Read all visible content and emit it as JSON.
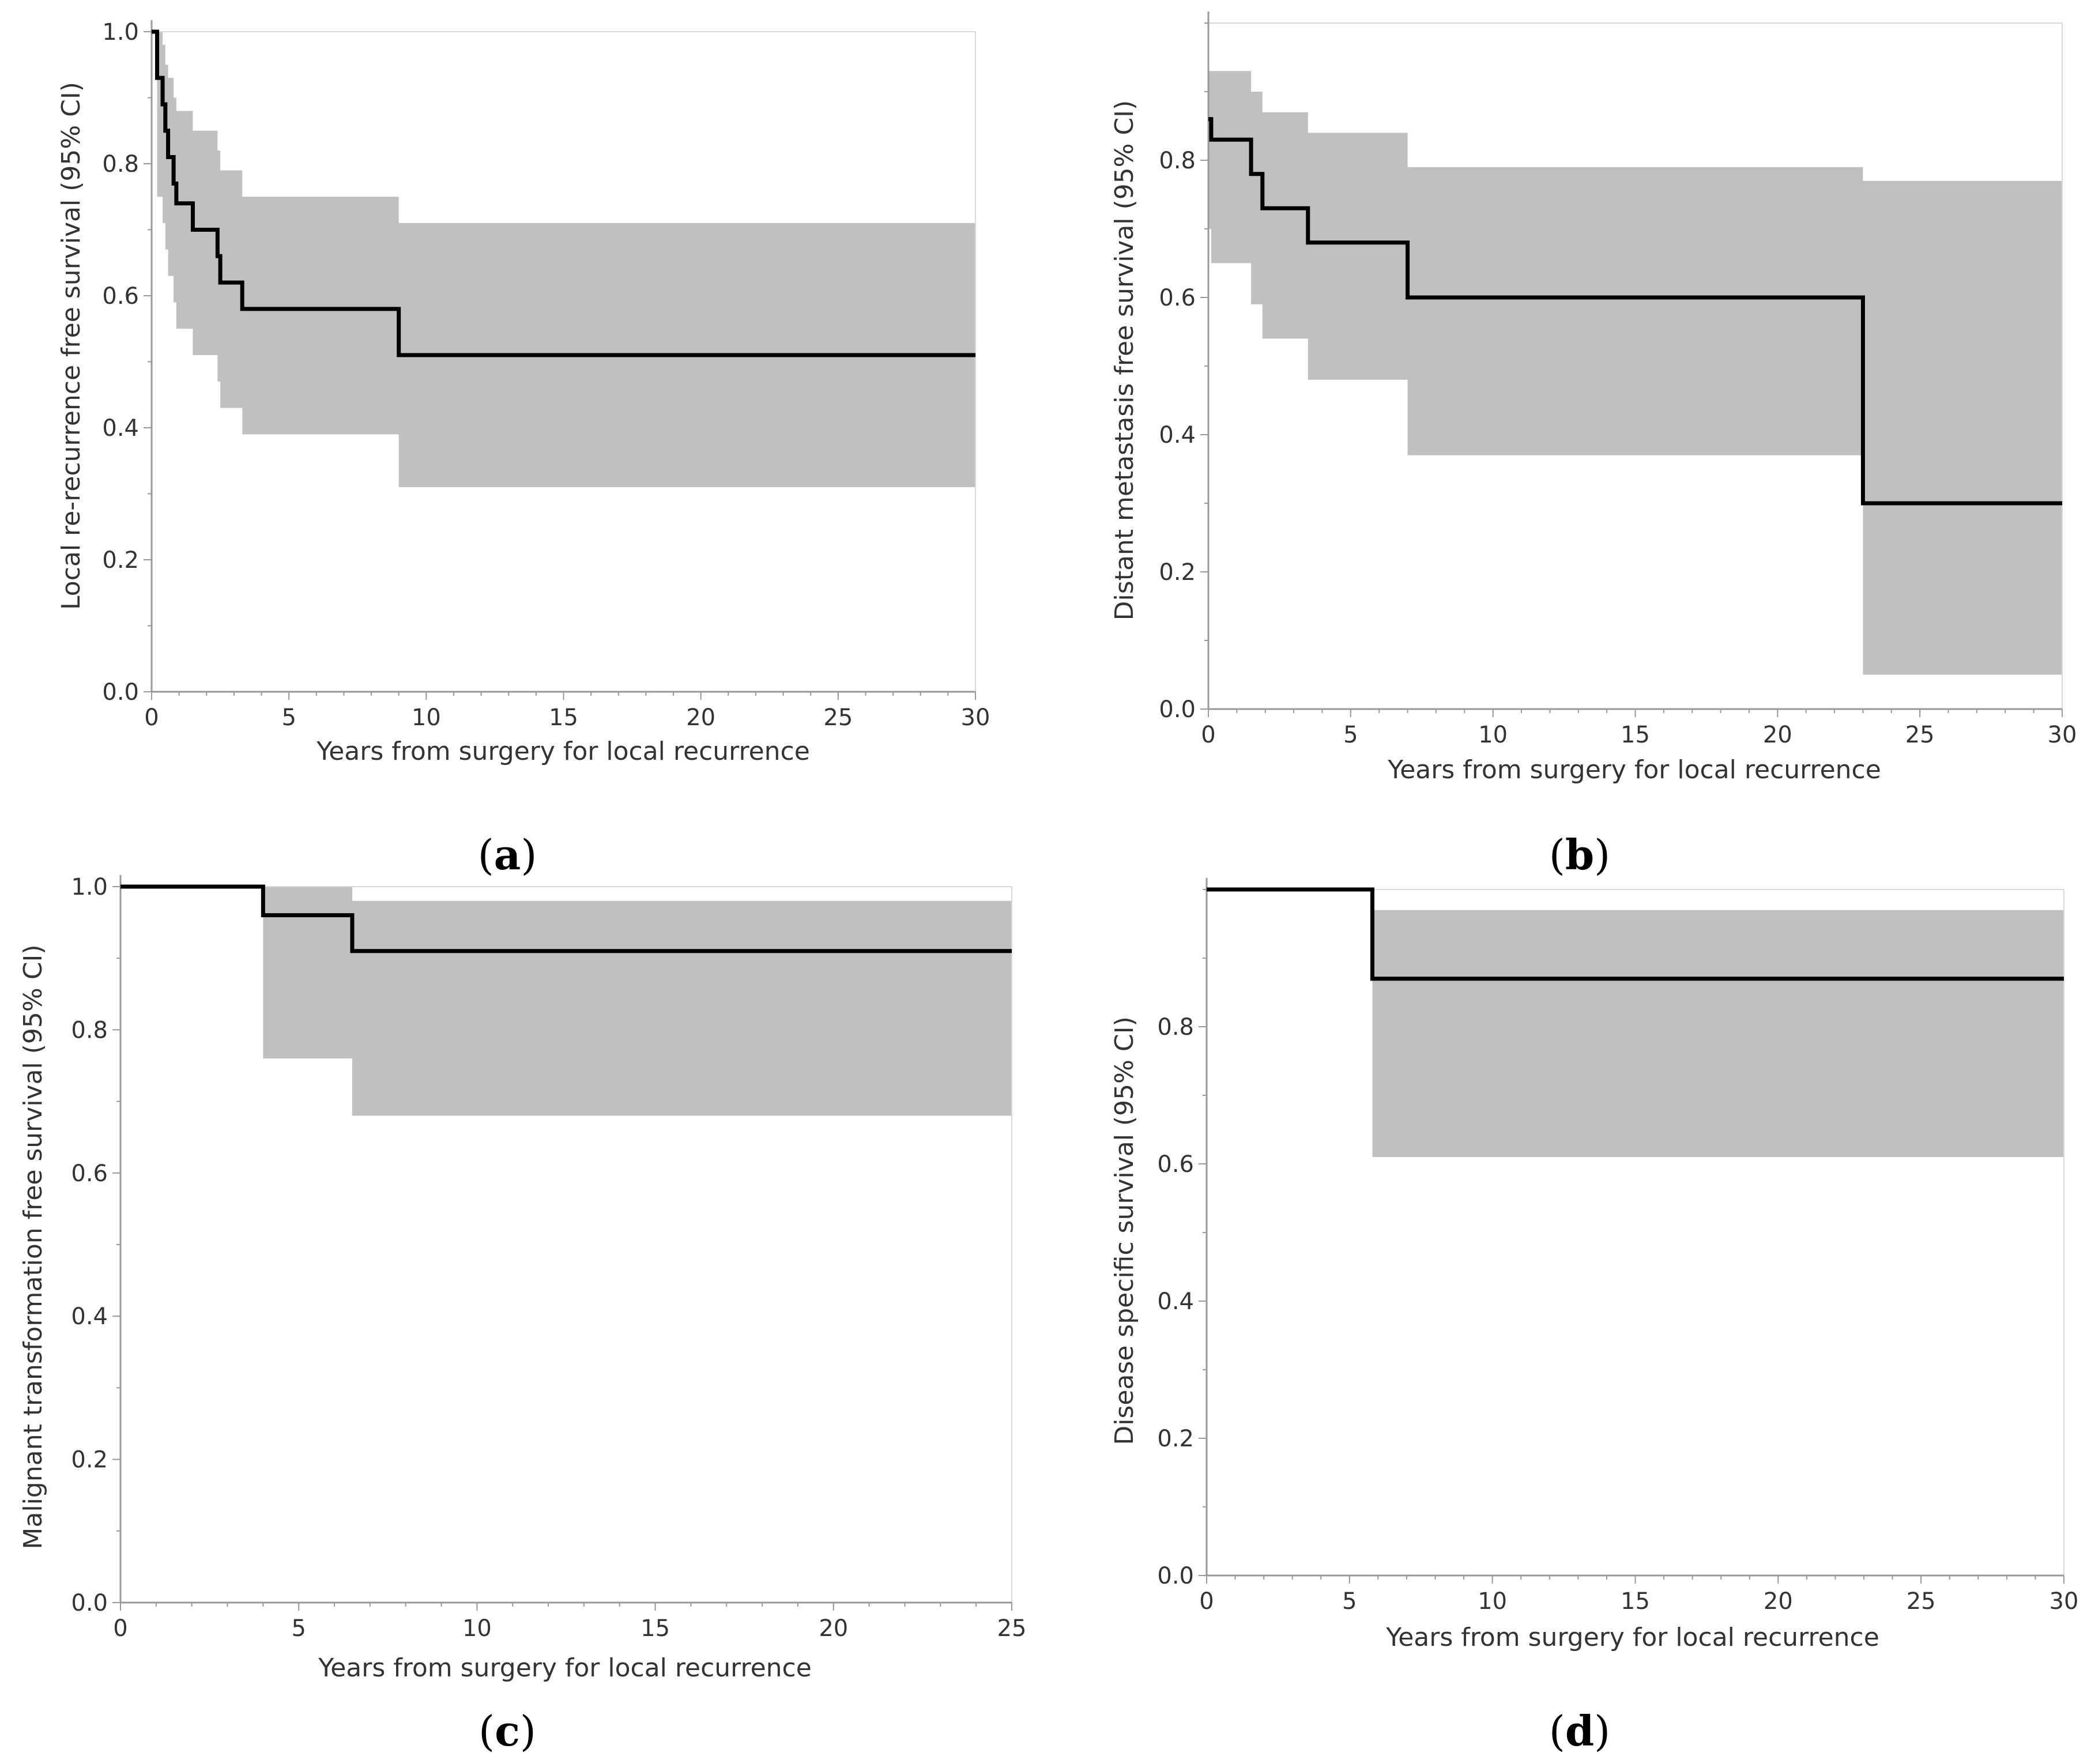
{
  "figure": {
    "x_axis_label": "Years from surgery for local recurrence",
    "colors": {
      "ci_band": "#c0c0c0",
      "km_line": "#000000",
      "axis": "#999999",
      "text": "#333333"
    }
  },
  "chart_data": [
    {
      "id": "a",
      "type": "line",
      "subtype": "kaplan-meier step with 95% CI band",
      "caption": {
        "open": "(",
        "letter": "a",
        "close": ")"
      },
      "xlabel": "Years from surgery for local recurrence",
      "ylabel": "Local re-recurrence free survival (95% CI)",
      "xlim": [
        0,
        30
      ],
      "ylim": [
        0,
        1.0
      ],
      "xticks": [
        "0",
        "5",
        "10",
        "15",
        "20",
        "25",
        "30"
      ],
      "yticks": [
        "0.0",
        "0.2",
        "0.4",
        "0.6",
        "0.8",
        "1.0"
      ],
      "survival": [
        [
          0,
          1.0
        ],
        [
          0.2,
          0.93
        ],
        [
          0.4,
          0.89
        ],
        [
          0.5,
          0.85
        ],
        [
          0.6,
          0.81
        ],
        [
          0.8,
          0.77
        ],
        [
          0.9,
          0.74
        ],
        [
          1.5,
          0.7
        ],
        [
          2.4,
          0.66
        ],
        [
          2.5,
          0.62
        ],
        [
          3.3,
          0.58
        ],
        [
          9.0,
          0.51
        ],
        [
          30,
          0.51
        ]
      ],
      "ci_upper": [
        [
          0.2,
          1.0
        ],
        [
          0.4,
          0.98
        ],
        [
          0.5,
          0.95
        ],
        [
          0.6,
          0.93
        ],
        [
          0.8,
          0.9
        ],
        [
          0.9,
          0.88
        ],
        [
          1.5,
          0.85
        ],
        [
          2.4,
          0.82
        ],
        [
          2.5,
          0.79
        ],
        [
          3.3,
          0.75
        ],
        [
          9.0,
          0.71
        ],
        [
          30,
          0.71
        ]
      ],
      "ci_lower": [
        [
          0.2,
          0.75
        ],
        [
          0.4,
          0.71
        ],
        [
          0.5,
          0.67
        ],
        [
          0.6,
          0.63
        ],
        [
          0.8,
          0.59
        ],
        [
          0.9,
          0.55
        ],
        [
          1.5,
          0.51
        ],
        [
          2.4,
          0.47
        ],
        [
          2.5,
          0.43
        ],
        [
          3.3,
          0.39
        ],
        [
          9.0,
          0.31
        ],
        [
          30,
          0.31
        ]
      ]
    },
    {
      "id": "b",
      "type": "line",
      "subtype": "kaplan-meier step with 95% CI band",
      "caption": {
        "open": "(",
        "letter": "b",
        "close": ")"
      },
      "xlabel": "Years from surgery for local recurrence",
      "ylabel": "Distant metastasis free survival (95% CI)",
      "xlim": [
        0,
        30
      ],
      "ylim": [
        0,
        1.0
      ],
      "xticks": [
        "0",
        "5",
        "10",
        "15",
        "20",
        "25",
        "30"
      ],
      "yticks": [
        "0.0",
        "0.2",
        "0.4",
        "0.6",
        "0.8"
      ],
      "survival": [
        [
          0,
          0.86
        ],
        [
          0.1,
          0.83
        ],
        [
          1.5,
          0.78
        ],
        [
          1.9,
          0.73
        ],
        [
          3.5,
          0.68
        ],
        [
          7.0,
          0.6
        ],
        [
          23.0,
          0.3
        ],
        [
          30,
          0.3
        ]
      ],
      "ci_upper": [
        [
          0,
          0.93
        ],
        [
          1.5,
          0.9
        ],
        [
          1.9,
          0.87
        ],
        [
          3.5,
          0.84
        ],
        [
          7.0,
          0.79
        ],
        [
          23.0,
          0.77
        ],
        [
          30,
          0.77
        ]
      ],
      "ci_lower": [
        [
          0,
          0.7
        ],
        [
          0.1,
          0.65
        ],
        [
          1.5,
          0.59
        ],
        [
          1.9,
          0.54
        ],
        [
          3.5,
          0.48
        ],
        [
          7.0,
          0.37
        ],
        [
          23.0,
          0.05
        ],
        [
          30,
          0.05
        ]
      ]
    },
    {
      "id": "c",
      "type": "line",
      "subtype": "kaplan-meier step with 95% CI band",
      "caption": {
        "open": "(",
        "letter": "c",
        "close": ")"
      },
      "xlabel": "Years from surgery for local recurrence",
      "ylabel": "Malignant transformation free survival (95% CI)",
      "xlim": [
        0,
        25
      ],
      "ylim": [
        0,
        1.0
      ],
      "xticks": [
        "0",
        "5",
        "10",
        "15",
        "20",
        "25"
      ],
      "yticks": [
        "0.0",
        "0.2",
        "0.4",
        "0.6",
        "0.8",
        "1.0"
      ],
      "survival": [
        [
          0,
          1.0
        ],
        [
          4.0,
          0.96
        ],
        [
          6.5,
          0.91
        ],
        [
          25,
          0.91
        ]
      ],
      "ci_upper": [
        [
          4.0,
          1.0
        ],
        [
          6.5,
          0.98
        ],
        [
          25,
          0.98
        ]
      ],
      "ci_lower": [
        [
          4.0,
          0.76
        ],
        [
          6.5,
          0.68
        ],
        [
          25,
          0.68
        ]
      ]
    },
    {
      "id": "d",
      "type": "line",
      "subtype": "kaplan-meier step with 95% CI band",
      "caption": {
        "open": "(",
        "letter": "d",
        "close": ")"
      },
      "xlabel": "Years from surgery for local recurrence",
      "ylabel": "Disease specific survival (95% CI)",
      "xlim": [
        0,
        30
      ],
      "ylim": [
        0,
        1.0
      ],
      "xticks": [
        "0",
        "5",
        "10",
        "15",
        "20",
        "25",
        "30"
      ],
      "yticks": [
        "0.0",
        "0.2",
        "0.4",
        "0.6",
        "0.8"
      ],
      "survival": [
        [
          0,
          1.0
        ],
        [
          5.8,
          0.87
        ],
        [
          30,
          0.87
        ]
      ],
      "ci_upper": [
        [
          5.8,
          0.97
        ],
        [
          30,
          0.97
        ]
      ],
      "ci_lower": [
        [
          5.8,
          0.61
        ],
        [
          30,
          0.61
        ]
      ]
    }
  ]
}
